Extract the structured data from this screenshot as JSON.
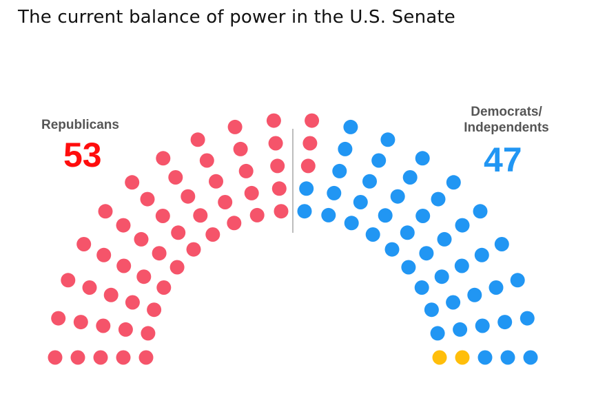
{
  "title": "The current balance of power in the U.S. Senate",
  "colors": {
    "republican": "#F5546A",
    "democrat": "#2196F3",
    "independent": "#FFBE0A",
    "divider": "#BDBDBD"
  },
  "chart_data": {
    "type": "parliament",
    "title": "The current balance of power in the U.S. Senate",
    "total_seats": 100,
    "groups": [
      {
        "name": "Republicans",
        "label": "Republicans",
        "count_label": "53",
        "seats": 53,
        "color": "#F5546A"
      },
      {
        "name": "Democrats",
        "seats": 45,
        "color": "#2196F3"
      },
      {
        "name": "Independents",
        "seats": 2,
        "color": "#FFBE0A"
      }
    ],
    "right_label": "Democrats/ Independents",
    "right_label_lines": [
      "Democrats/",
      "Independents"
    ],
    "right_count_label": "47",
    "right_seats": 47
  }
}
